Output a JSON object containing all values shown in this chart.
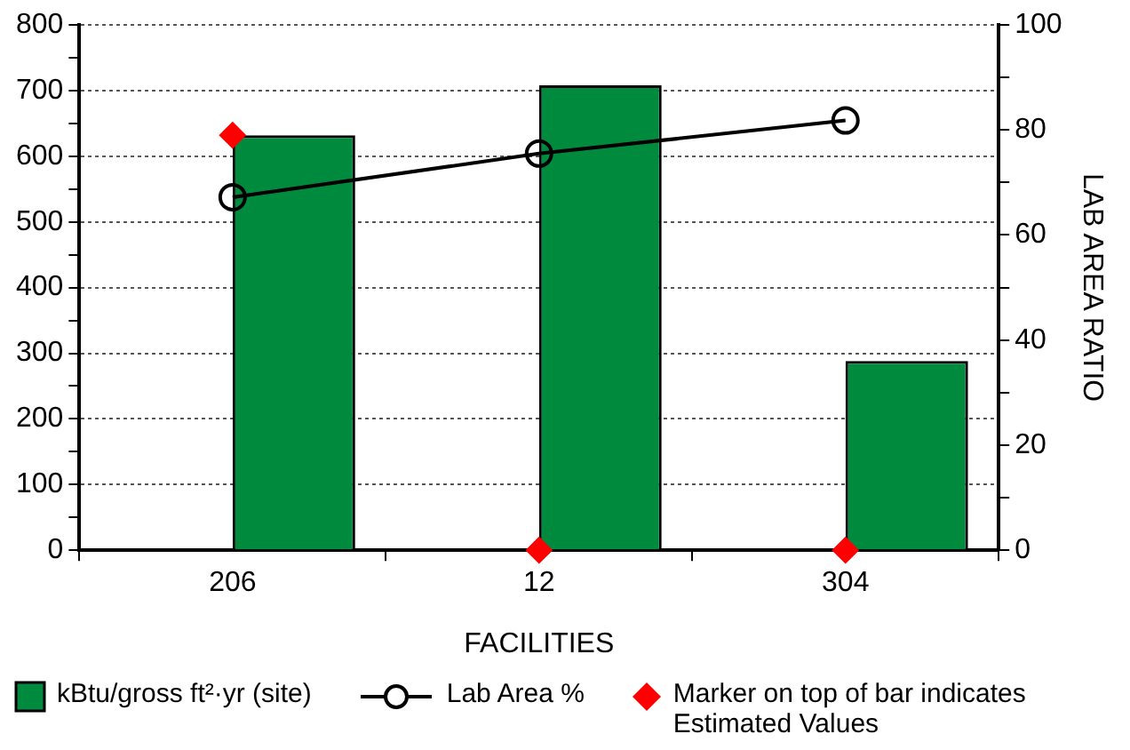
{
  "chart_data": {
    "type": "bar",
    "xlabel": "FACILITIES",
    "y2label": "LAB AREA RATIO",
    "categories": [
      "206",
      "12",
      "304"
    ],
    "series": [
      {
        "name": "kBtu/gross ft²·yr (site)",
        "color": "#008a3e",
        "values": [
          632,
          708,
          288
        ]
      },
      {
        "name": "Lab Area %",
        "type": "line",
        "color": "#000000",
        "axis": "y2",
        "marker": "circle",
        "values": [
          67.2,
          75.5,
          81.8
        ]
      },
      {
        "name": "Marker on top of bar indicates Estimated Values",
        "type": "scatter",
        "color": "#ff0000",
        "marker": "diamond",
        "x": [
          "206",
          "12",
          "304"
        ],
        "values": [
          632,
          0,
          0
        ]
      }
    ],
    "ylim": [
      0,
      800
    ],
    "yticks": [
      0,
      {
        "value": 50,
        "label": null
      },
      100,
      {
        "value": 150,
        "label": null
      },
      200,
      {
        "value": 250,
        "label": null
      },
      300,
      {
        "value": 350,
        "label": null
      },
      400,
      {
        "value": 450,
        "label": null
      },
      500,
      {
        "value": 550,
        "label": null
      },
      600,
      {
        "value": 650,
        "label": null
      },
      700,
      {
        "value": 750,
        "label": null
      },
      800
    ],
    "y2lim": [
      0,
      100
    ],
    "y2ticks": [
      0,
      {
        "value": 10,
        "label": null
      },
      20,
      {
        "value": 30,
        "label": null
      },
      40,
      {
        "value": 50,
        "label": null
      },
      60,
      {
        "value": 70,
        "label": null
      },
      80,
      {
        "value": 90,
        "label": null
      },
      100
    ],
    "grid": "y",
    "legend": "bottom"
  }
}
